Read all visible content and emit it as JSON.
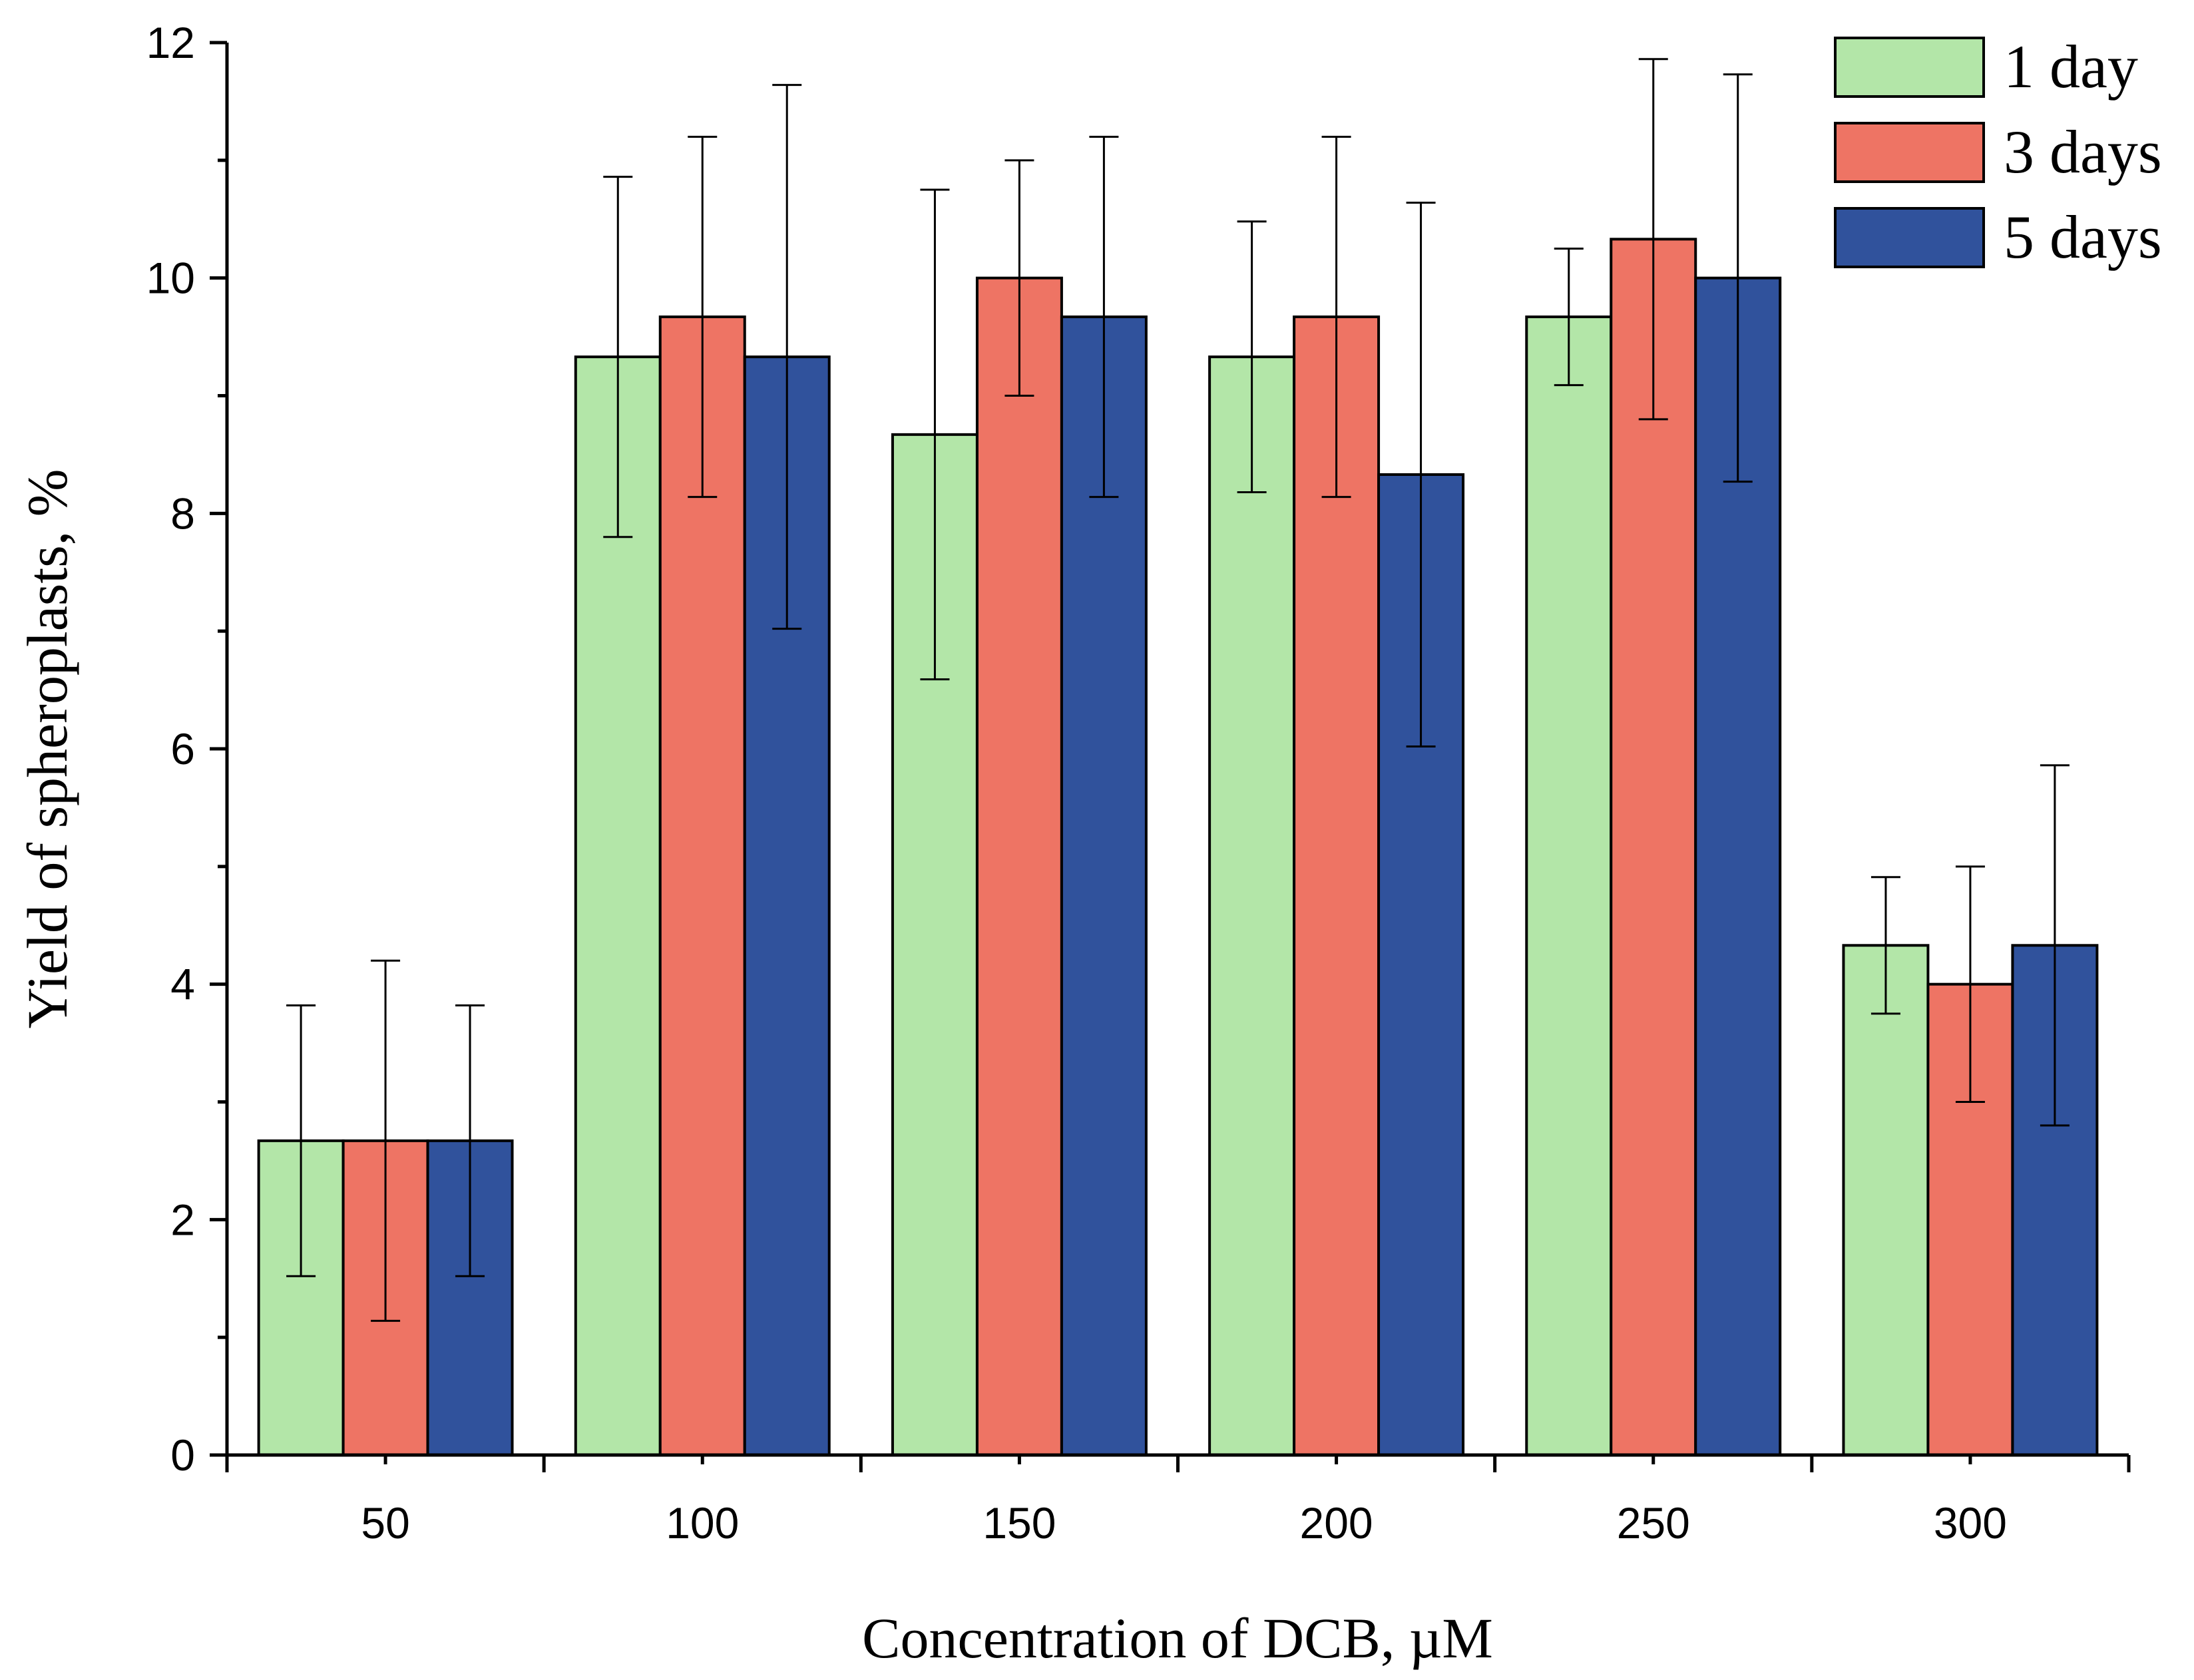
{
  "chart_data": {
    "type": "bar",
    "categories": [
      "50",
      "100",
      "150",
      "200",
      "250",
      "300"
    ],
    "series": [
      {
        "name": "1 day",
        "color": "#b3e6a8",
        "values": [
          2.67,
          9.33,
          8.67,
          9.33,
          9.67,
          4.33
        ],
        "errors": [
          1.15,
          1.53,
          2.08,
          1.15,
          0.58,
          0.58
        ]
      },
      {
        "name": "3 days",
        "color": "#ee7464",
        "values": [
          2.67,
          9.67,
          10.0,
          9.67,
          10.33,
          4.0
        ],
        "errors": [
          1.53,
          1.53,
          1.0,
          1.53,
          1.53,
          1.0
        ]
      },
      {
        "name": "5 days",
        "color": "#30529c",
        "values": [
          2.67,
          9.33,
          9.67,
          8.33,
          10.0,
          4.33
        ],
        "errors": [
          1.15,
          2.31,
          1.53,
          2.31,
          1.73,
          1.53
        ]
      }
    ],
    "xlabel": "Concentration of DCB, µM",
    "ylabel": "Yield of spheroplasts, %",
    "ylim": [
      0,
      12
    ],
    "yticks": [
      "0",
      "2",
      "4",
      "6",
      "8",
      "10",
      "12"
    ],
    "grid": false,
    "legend_position": "top-right"
  }
}
